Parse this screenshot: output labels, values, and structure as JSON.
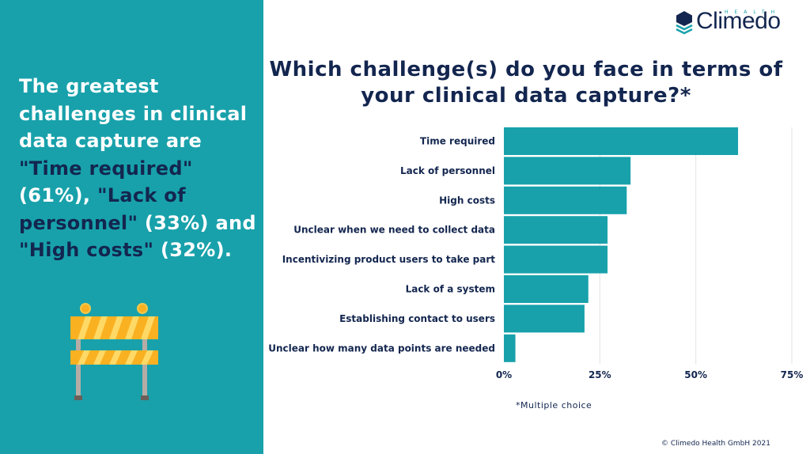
{
  "summary": {
    "parts": [
      {
        "text": "The greatest challenges in clinical data capture are ",
        "highlight": false
      },
      {
        "text": "\"Time required\"",
        "highlight": true
      },
      {
        "text": " (61%), ",
        "highlight": false
      },
      {
        "text": "\"Lack of personnel\"",
        "highlight": true
      },
      {
        "text": " (33%) and ",
        "highlight": false
      },
      {
        "text": "\"High costs\"",
        "highlight": true
      },
      {
        "text": " (32%).",
        "highlight": false
      }
    ]
  },
  "logo": {
    "word": "Climedo",
    "sub": "HEALTH"
  },
  "footer": {
    "note": "*Multiple choice",
    "copyright": "© Climedo Health GmbH 2021"
  },
  "colors": {
    "panel": "#18a1ab",
    "bar": "#18a1ab",
    "text": "#13264f",
    "barrier_yellow": "#f9b122"
  },
  "chart_data": {
    "type": "bar",
    "orientation": "horizontal",
    "title": "Which challenge(s) do you face in terms of your clinical data capture?*",
    "categories": [
      "Time required",
      "Lack of personnel",
      "High costs",
      "Unclear when we need to collect data",
      "Incentivizing product users to take part",
      "Lack of a system",
      "Establishing contact to users",
      "Unclear how many data points are needed"
    ],
    "values": [
      61,
      33,
      32,
      27,
      27,
      22,
      21,
      3
    ],
    "unit": "%",
    "xlim": [
      0,
      75
    ],
    "xticks": [
      "0%",
      "25%",
      "50%",
      "75%"
    ],
    "grid": true
  }
}
